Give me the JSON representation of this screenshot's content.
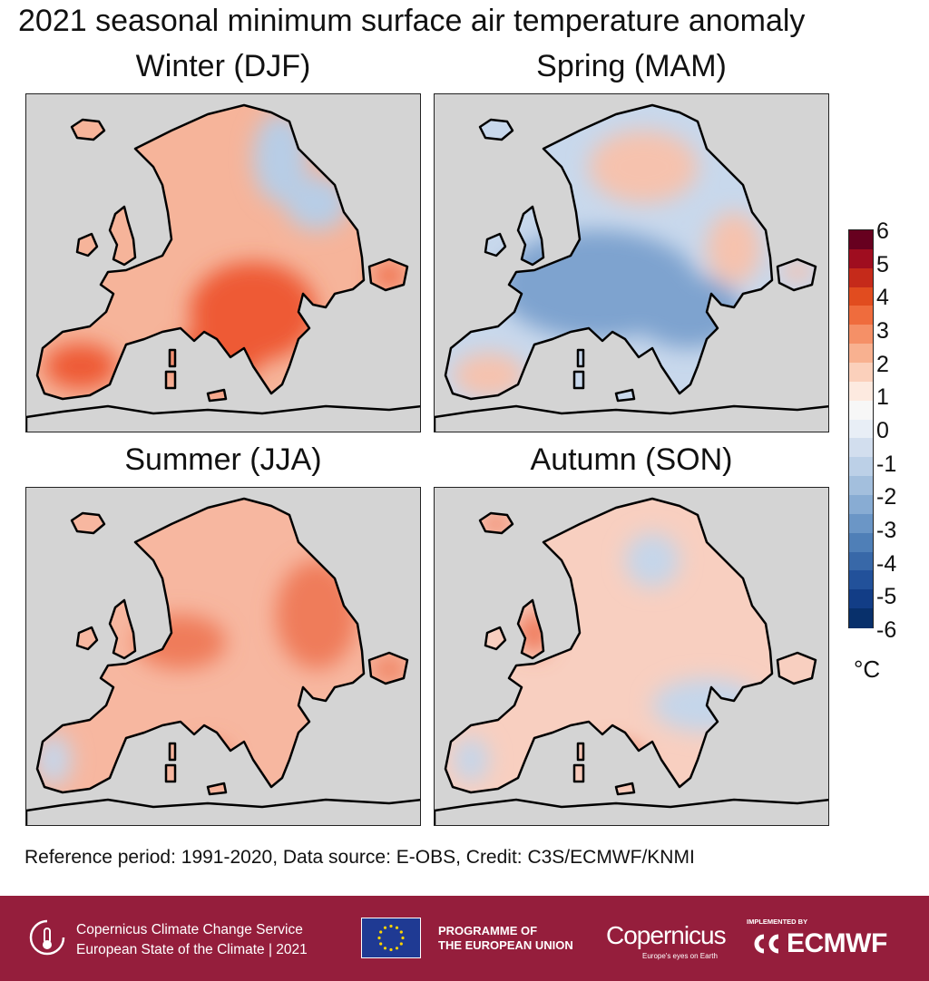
{
  "title": "2021 seasonal minimum surface air temperature anomaly",
  "panels": [
    {
      "key": "djf",
      "title": "Winter (DJF)",
      "character": "mostly warm; cold in northeast Scandinavia and western Russia; strongest warming in southeastern Europe and Balkans",
      "colors": {
        "base": "#f6b49a",
        "strong": "#ee5a35",
        "cold": "#b7cde6"
      }
    },
    {
      "key": "mam",
      "title": "Spring (MAM)",
      "character": "widespread cold over central Europe; warm in the north and east",
      "colors": {
        "base": "#c8d8ec",
        "strong": "#7ea3cf",
        "warm": "#f6c2ae"
      }
    },
    {
      "key": "jja",
      "title": "Summer (JJA)",
      "character": "mostly warm, strongest in eastern Europe; cooler in western Iberia",
      "colors": {
        "base": "#f7b7a0",
        "strong": "#ef7c5a",
        "cold": "#c6d6ea"
      }
    },
    {
      "key": "son",
      "title": "Autumn (SON)",
      "character": "mixed, mostly slightly warm; warm in Iceland, Britain and Italy",
      "colors": {
        "base": "#f8cfc0",
        "strong": "#ef7554",
        "cold": "#c5d6ea"
      }
    }
  ],
  "colorbar": {
    "min": -6,
    "max": 6,
    "ticks": [
      "6",
      "5",
      "4",
      "3",
      "2",
      "1",
      "0",
      "-1",
      "-2",
      "-3",
      "-4",
      "-5",
      "-6"
    ],
    "colors": [
      "#67001f",
      "#9f0d1f",
      "#c52a1a",
      "#e14c1f",
      "#ef6c3d",
      "#f59067",
      "#f8b190",
      "#fbd0bb",
      "#fdeae0",
      "#f7f7f7",
      "#e8eef6",
      "#d2deee",
      "#bcd0e7",
      "#a3bfdd",
      "#88acd3",
      "#6b96c6",
      "#4f7fb7",
      "#3868a8",
      "#22519a",
      "#123d86",
      "#08306b"
    ],
    "unit": "°C"
  },
  "credit": "Reference period: 1991-2020, Data source: E-OBS, Credit: C3S/ECMWF/KNMI",
  "footer": {
    "c3s_line1": "Copernicus Climate Change Service",
    "c3s_line2": "European State of the Climate | 2021",
    "eu_line1": "PROGRAMME OF",
    "eu_line2": "THE EUROPEAN UNION",
    "copernicus": "Copernicus",
    "copernicus_tag": "Europe's eyes on Earth",
    "implemented_by": "IMPLEMENTED BY",
    "ecmwf": "ECMWF",
    "background": "#951e3c"
  }
}
